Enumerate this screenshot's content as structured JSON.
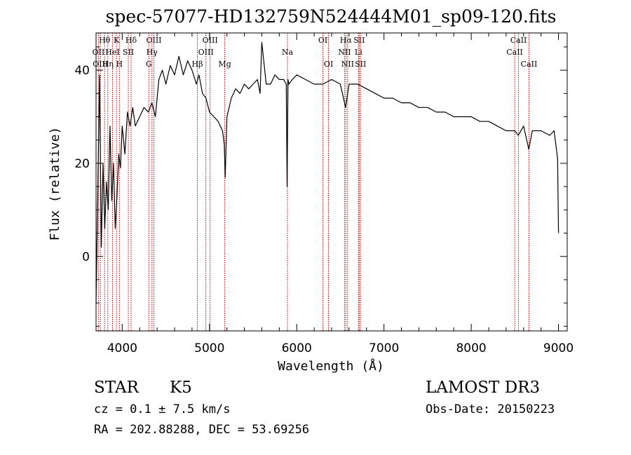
{
  "colors": {
    "spectrum": "#000000",
    "line_marker": "#cc0000",
    "axis": "#000000",
    "background": "#ffffff"
  },
  "chart_data": {
    "type": "line",
    "title": "spec-57077-HD132759N524444M01_sp09-120.fits",
    "xlabel": "Wavelength (Å)",
    "ylabel": "Flux (relative)",
    "xlim": [
      3700,
      9100
    ],
    "ylim": [
      -16,
      48
    ],
    "xticks": [
      4000,
      5000,
      6000,
      7000,
      8000,
      9000
    ],
    "yticks": [
      0,
      20,
      40
    ],
    "grid": false,
    "series": [
      {
        "name": "spectrum",
        "x": [
          3700,
          3720,
          3740,
          3760,
          3780,
          3800,
          3820,
          3840,
          3860,
          3880,
          3900,
          3920,
          3940,
          3960,
          3980,
          4000,
          4030,
          4060,
          4090,
          4120,
          4150,
          4200,
          4250,
          4300,
          4340,
          4380,
          4420,
          4460,
          4500,
          4550,
          4600,
          4650,
          4700,
          4750,
          4800,
          4850,
          4880,
          4920,
          4960,
          5000,
          5050,
          5100,
          5150,
          5170,
          5180,
          5200,
          5250,
          5300,
          5350,
          5400,
          5450,
          5500,
          5550,
          5580,
          5600,
          5650,
          5700,
          5750,
          5800,
          5850,
          5880,
          5890,
          5900,
          5910,
          5950,
          6000,
          6100,
          6200,
          6300,
          6400,
          6500,
          6560,
          6600,
          6700,
          6800,
          6900,
          7000,
          7100,
          7200,
          7300,
          7400,
          7500,
          7600,
          7700,
          7800,
          7900,
          8000,
          8100,
          8200,
          8300,
          8400,
          8500,
          8540,
          8600,
          8660,
          8700,
          8800,
          8900,
          8950,
          8990,
          9000
        ],
        "values": [
          -10,
          14,
          39,
          2,
          20,
          6,
          16,
          10,
          28,
          12,
          20,
          6,
          13,
          22,
          19,
          28,
          22,
          31,
          28,
          32,
          28,
          30,
          32,
          31,
          33,
          30,
          38,
          40,
          37,
          41,
          39,
          43,
          39,
          42,
          40,
          37,
          39,
          35,
          34,
          31,
          30,
          29,
          27,
          24,
          17,
          30,
          34,
          36,
          35,
          37,
          36,
          37,
          38,
          35,
          46,
          37,
          37,
          39,
          38,
          38,
          37,
          15,
          38,
          37,
          38,
          39,
          38,
          37,
          37,
          38,
          37,
          32,
          37,
          37,
          36,
          35,
          34,
          34,
          33,
          33,
          32,
          32,
          31,
          31,
          30,
          30,
          30,
          29,
          29,
          28,
          27,
          27,
          26,
          28,
          23,
          27,
          27,
          26,
          27,
          21,
          5
        ]
      }
    ],
    "line_markers": [
      {
        "label": "Hθ",
        "wavelength": 3798,
        "row": 0
      },
      {
        "label": "OII",
        "wavelength": 3727,
        "row": 1
      },
      {
        "label": "OIII",
        "wavelength": 3750,
        "row": 2
      },
      {
        "label": "K",
        "wavelength": 3934,
        "row": 0
      },
      {
        "label": "HeI",
        "wavelength": 3889,
        "row": 1
      },
      {
        "label": "Hη",
        "wavelength": 3835,
        "row": 2
      },
      {
        "label": "H",
        "wavelength": 3968,
        "row": 2
      },
      {
        "label": "SII",
        "wavelength": 4070,
        "row": 1
      },
      {
        "label": "Hδ",
        "wavelength": 4102,
        "row": 0
      },
      {
        "label": "OIII",
        "wavelength": 4363,
        "row": 0
      },
      {
        "label": "Hγ",
        "wavelength": 4341,
        "row": 1
      },
      {
        "label": "G",
        "wavelength": 4305,
        "row": 2
      },
      {
        "label": "Hβ",
        "wavelength": 4861,
        "row": 2
      },
      {
        "label": "OIII",
        "wavelength": 5007,
        "row": 0
      },
      {
        "label": "OIII",
        "wavelength": 4959,
        "row": 1
      },
      {
        "label": "Mg",
        "wavelength": 5175,
        "row": 2
      },
      {
        "label": "Na",
        "wavelength": 5893,
        "row": 1
      },
      {
        "label": "OI",
        "wavelength": 6300,
        "row": 0
      },
      {
        "label": "OI",
        "wavelength": 6364,
        "row": 2
      },
      {
        "label": "Hα",
        "wavelength": 6563,
        "row": 0
      },
      {
        "label": "NII",
        "wavelength": 6548,
        "row": 1
      },
      {
        "label": "NII",
        "wavelength": 6583,
        "row": 2
      },
      {
        "label": "SII",
        "wavelength": 6716,
        "row": 0
      },
      {
        "label": "Li",
        "wavelength": 6708,
        "row": 1
      },
      {
        "label": "SII",
        "wavelength": 6731,
        "row": 2
      },
      {
        "label": "CaII",
        "wavelength": 8542,
        "row": 0
      },
      {
        "label": "CaII",
        "wavelength": 8498,
        "row": 1
      },
      {
        "label": "CaII",
        "wavelength": 8662,
        "row": 2
      }
    ]
  },
  "info": {
    "object_class": "STAR",
    "subclass": "K5",
    "survey": "LAMOST DR3",
    "cz": "cz = 0.1 ± 7.5 km/s",
    "obs_date": "Obs-Date: 20150223",
    "coords": "RA = 202.88288, DEC =  53.69256"
  }
}
